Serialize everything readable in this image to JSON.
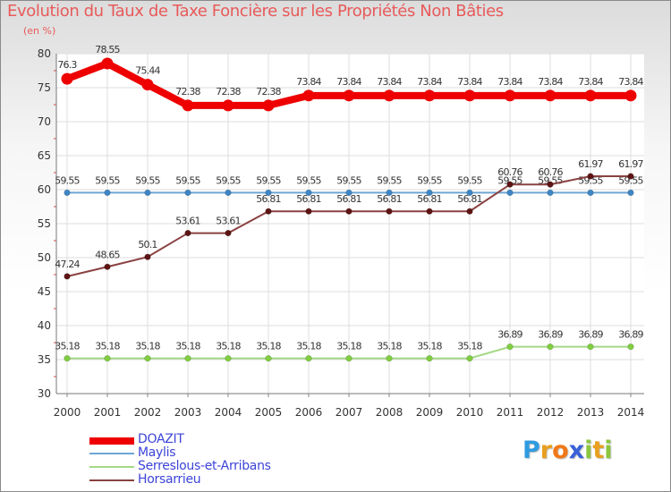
{
  "title": "Evolution du Taux de Taxe Foncière sur les Propriétés Non Bâties",
  "unit": "(en %)",
  "brand": {
    "chars": [
      "P",
      "r",
      "o",
      "x",
      "i",
      "t",
      "i"
    ],
    "colors": [
      "#2f9be0",
      "#e8a020",
      "#f07818",
      "#3a62d8",
      "#8cc63f",
      "#e8a020",
      "#8cc63f"
    ]
  },
  "chart_data": {
    "type": "line",
    "title": "Evolution du Taux de Taxe Foncière sur les Propriétés Non Bâties",
    "ylabel": "(en %)",
    "xlabel": "",
    "categories": [
      "2000",
      "2001",
      "2002",
      "2003",
      "2004",
      "2005",
      "2006",
      "2007",
      "2008",
      "2009",
      "2010",
      "2011",
      "2012",
      "2013",
      "2014"
    ],
    "ylim": [
      30,
      80
    ],
    "yticks": [
      30,
      35,
      40,
      45,
      50,
      55,
      60,
      65,
      70,
      75,
      80
    ],
    "grid": true,
    "legend": "bottom-left",
    "series": [
      {
        "name": "DOAZIT",
        "color": "#ee0000",
        "emphasis": "bold",
        "values": [
          76.3,
          78.55,
          75.44,
          72.38,
          72.38,
          72.38,
          73.84,
          73.84,
          73.84,
          73.84,
          73.84,
          73.84,
          73.84,
          73.84,
          73.84
        ],
        "labels": [
          "76.3",
          "78.55",
          "75.44",
          "72.38",
          "72.38",
          "72.38",
          "73.84",
          "73.84",
          "73.84",
          "73.84",
          "73.84",
          "73.84",
          "73.84",
          "73.84",
          "73.84"
        ]
      },
      {
        "name": "Maylis",
        "color": "#6ea6d4",
        "marker": "#3d86c6",
        "values": [
          59.55,
          59.55,
          59.55,
          59.55,
          59.55,
          59.55,
          59.55,
          59.55,
          59.55,
          59.55,
          59.55,
          59.55,
          59.55,
          59.55,
          59.55
        ],
        "labels": [
          "59.55",
          "59.55",
          "59.55",
          "59.55",
          "59.55",
          "59.55",
          "59.55",
          "59.55",
          "59.55",
          "59.55",
          "59.55",
          "59.55",
          "59.55",
          "59.55",
          "59.55"
        ]
      },
      {
        "name": "Serreslous-et-Arribans",
        "color": "#a4d986",
        "marker": "#7fcf3f",
        "values": [
          35.18,
          35.18,
          35.18,
          35.18,
          35.18,
          35.18,
          35.18,
          35.18,
          35.18,
          35.18,
          35.18,
          36.89,
          36.89,
          36.89,
          36.89
        ],
        "labels": [
          "35.18",
          "35.18",
          "35.18",
          "35.18",
          "35.18",
          "35.18",
          "35.18",
          "35.18",
          "35.18",
          "35.18",
          "35.18",
          "36.89",
          "36.89",
          "36.89",
          "36.89"
        ]
      },
      {
        "name": "Horsarrieu",
        "color": "#8a4141",
        "marker": "#5e1414",
        "values": [
          47.24,
          48.65,
          50.1,
          53.61,
          53.61,
          56.81,
          56.81,
          56.81,
          56.81,
          56.81,
          56.81,
          60.76,
          60.76,
          61.97,
          61.97
        ],
        "labels": [
          "47.24",
          "48.65",
          "50.1",
          "53.61",
          "53.61",
          "56.81",
          "56.81",
          "56.81",
          "56.81",
          "56.81",
          "56.81",
          "60.76",
          "60.76",
          "61.97",
          "61.97"
        ]
      }
    ]
  }
}
